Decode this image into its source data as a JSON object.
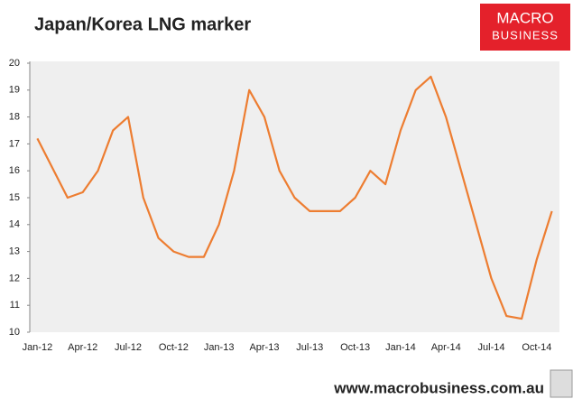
{
  "chart_data": {
    "type": "line",
    "title": "Japan/Korea LNG marker",
    "categories": [
      "Jan-12",
      null,
      null,
      "Apr-12",
      null,
      null,
      "Jul-12",
      null,
      null,
      "Oct-12",
      null,
      null,
      "Jan-13",
      null,
      null,
      "Apr-13",
      null,
      null,
      "Jul-13",
      null,
      null,
      "Oct-13",
      null,
      null,
      "Jan-14",
      null,
      null,
      "Apr-14",
      null,
      null,
      "Jul-14",
      null,
      null,
      "Oct-14",
      null
    ],
    "series": [
      {
        "name": "Japan/Korea LNG marker",
        "color": "#ed7d31",
        "values": [
          17.2,
          16.1,
          15.0,
          15.2,
          16.0,
          17.5,
          18.0,
          15.0,
          13.5,
          13.0,
          12.8,
          12.8,
          14.0,
          16.0,
          19.0,
          18.0,
          16.0,
          15.0,
          14.5,
          14.5,
          14.5,
          15.0,
          16.0,
          15.5,
          17.5,
          19.0,
          19.5,
          18.0,
          16.0,
          14.0,
          12.0,
          10.6,
          10.5,
          12.7,
          14.5
        ]
      }
    ],
    "ylim": [
      10,
      20
    ],
    "yticks": [
      10,
      11,
      12,
      13,
      14,
      15,
      16,
      17,
      18,
      19,
      20
    ],
    "grid": false
  },
  "logo": {
    "line1": "MACRO",
    "line2": "BUSINESS"
  },
  "footer": "www.macrobusiness.com.au"
}
